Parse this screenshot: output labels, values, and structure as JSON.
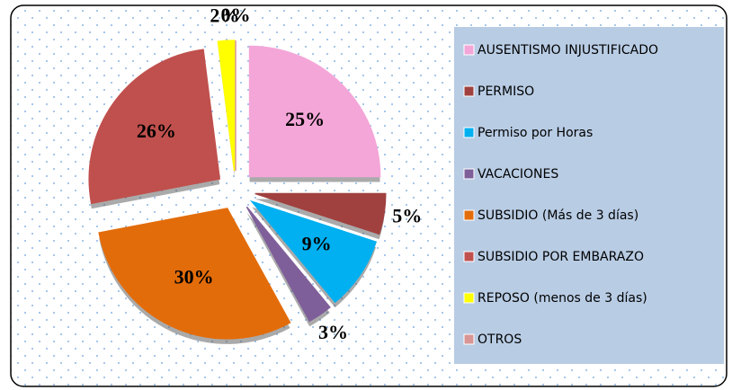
{
  "chart_data": {
    "type": "pie",
    "categories": [
      "AUSENTISMO INJUSTIFICADO",
      "PERMISO",
      "Permiso por  Horas",
      "VACACIONES",
      "SUBSIDIO (Más de 3 días)",
      "SUBSIDIO POR EMBARAZO",
      "REPOSO (menos de 3 días)",
      "OTROS"
    ],
    "values": [
      25,
      5,
      9,
      3,
      30,
      26,
      2,
      0
    ],
    "value_labels": [
      "25%",
      "5%",
      "9%",
      "3%",
      "30%",
      "26%",
      "2%",
      "0%"
    ],
    "colors": [
      "#f4a6d8",
      "#a0413f",
      "#00b0f0",
      "#7f5f9a",
      "#e36c0a",
      "#c0504d",
      "#ffff00",
      "#d99594"
    ],
    "legend": "right"
  }
}
